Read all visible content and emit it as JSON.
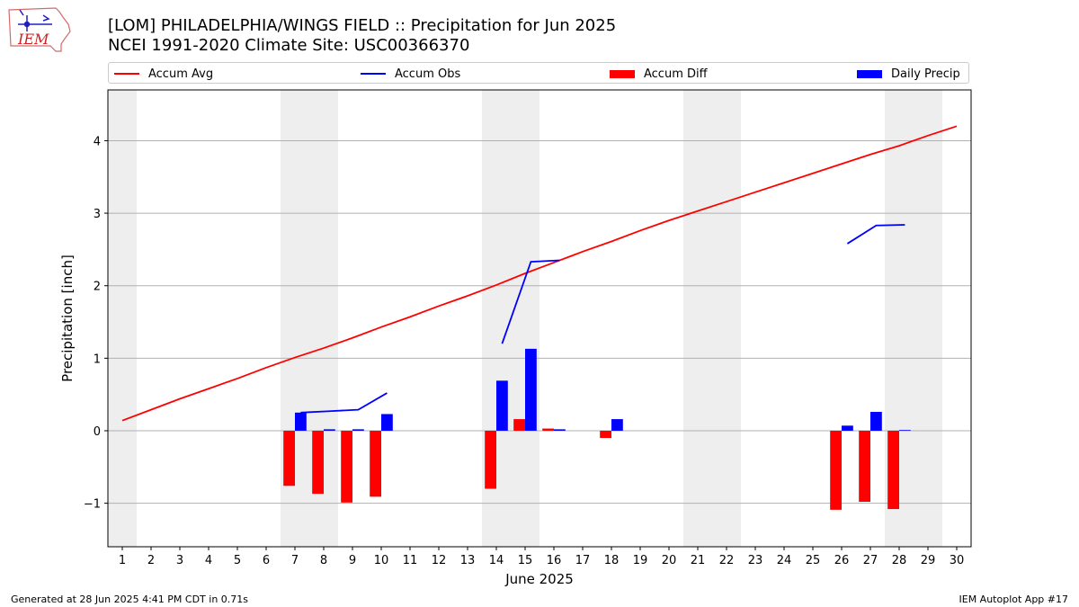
{
  "logo": {
    "text": "IEM"
  },
  "title_line1": "[LOM] PHILADELPHIA/WINGS FIELD :: Precipitation for Jun 2025",
  "title_line2": "NCEI 1991-2020 Climate Site: USC00366370",
  "legend": [
    {
      "label": "Accum Avg",
      "kind": "line",
      "color": "#ff0000"
    },
    {
      "label": "Accum Obs",
      "kind": "line",
      "color": "#0000ff"
    },
    {
      "label": "Accum Diff",
      "kind": "bar",
      "color": "#ff0000"
    },
    {
      "label": "Daily Precip",
      "kind": "bar",
      "color": "#0000ff"
    }
  ],
  "footer": {
    "left": "Generated at 28 Jun 2025 4:41 PM CDT in 0.71s",
    "right": "IEM Autoplot App #17"
  },
  "chart_data": {
    "type": "bar",
    "xlabel": "June 2025",
    "ylabel": "Precipitation [inch]",
    "xlim": [
      0.5,
      30.5
    ],
    "ylim": [
      -1.6,
      4.7
    ],
    "yticks": [
      -1,
      0,
      1,
      2,
      3,
      4
    ],
    "ytick_labels": [
      "−1",
      "0",
      "1",
      "2",
      "3",
      "4"
    ],
    "xticks": [
      1,
      2,
      3,
      4,
      5,
      6,
      7,
      8,
      9,
      10,
      11,
      12,
      13,
      14,
      15,
      16,
      17,
      18,
      19,
      20,
      21,
      22,
      23,
      24,
      25,
      26,
      27,
      28,
      29,
      30
    ],
    "grid": "y",
    "weekend_shading_days": [
      1,
      7,
      8,
      14,
      15,
      21,
      22,
      28,
      29
    ],
    "weekend_shade_color": "#eeeeee",
    "series": [
      {
        "name": "Accum Avg",
        "type": "line",
        "color": "#ff0000",
        "x": [
          1,
          2,
          3,
          4,
          5,
          6,
          7,
          8,
          9,
          10,
          11,
          12,
          13,
          14,
          15,
          16,
          17,
          18,
          19,
          20,
          21,
          22,
          23,
          24,
          25,
          26,
          27,
          28,
          29,
          30
        ],
        "values": [
          0.14,
          0.29,
          0.44,
          0.58,
          0.72,
          0.87,
          1.01,
          1.14,
          1.28,
          1.43,
          1.57,
          1.72,
          1.86,
          2.01,
          2.17,
          2.32,
          2.47,
          2.61,
          2.76,
          2.9,
          3.03,
          3.16,
          3.29,
          3.42,
          3.55,
          3.68,
          3.81,
          3.93,
          4.07,
          4.2
        ]
      },
      {
        "name": "Accum Obs",
        "type": "line",
        "color": "#0000ff",
        "segments": [
          {
            "x": [
              7,
              8,
              9,
              10
            ],
            "values": [
              0.25,
              0.27,
              0.29,
              0.52
            ]
          },
          {
            "x": [
              14,
              15,
              16
            ],
            "values": [
              1.2,
              2.33,
              2.35
            ]
          },
          {
            "x": [
              26,
              27,
              28
            ],
            "values": [
              2.58,
              2.83,
              2.84
            ]
          }
        ]
      },
      {
        "name": "Accum Diff",
        "type": "bar",
        "color": "#ff0000",
        "x": [
          7,
          8,
          9,
          10,
          14,
          15,
          16,
          18,
          26,
          27,
          28
        ],
        "values": [
          -0.76,
          -0.87,
          -0.99,
          -0.91,
          -0.8,
          0.16,
          0.03,
          -0.1,
          -1.09,
          -0.98,
          -1.08
        ]
      },
      {
        "name": "Daily Precip",
        "type": "bar",
        "color": "#0000ff",
        "x": [
          7,
          8,
          9,
          10,
          14,
          15,
          16,
          18,
          26,
          27,
          28
        ],
        "values": [
          0.25,
          0.02,
          0.02,
          0.23,
          0.69,
          1.13,
          0.02,
          0.16,
          0.07,
          0.26,
          0.01
        ]
      }
    ]
  }
}
